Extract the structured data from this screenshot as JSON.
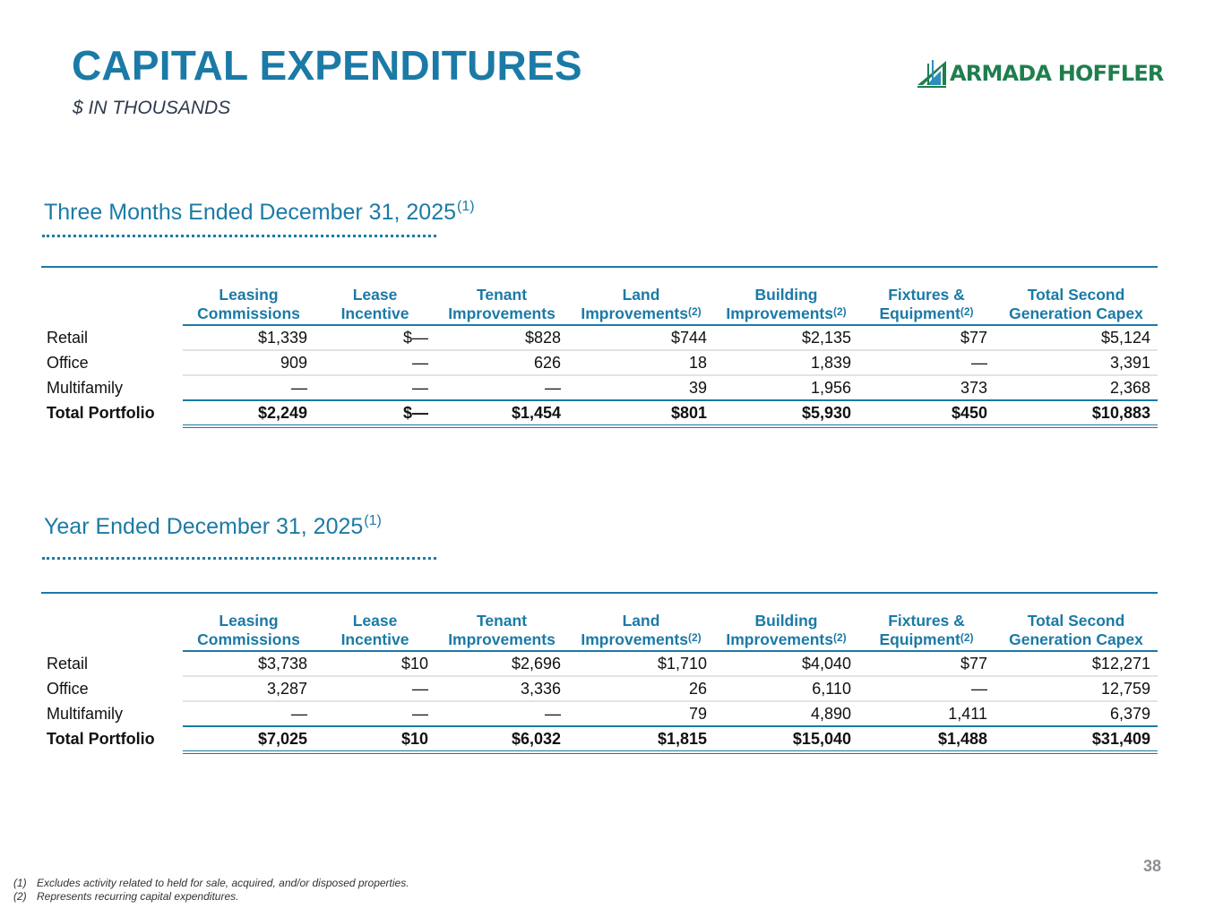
{
  "header": {
    "title": "CAPITAL EXPENDITURES",
    "subtitle": "$ IN THOUSANDS",
    "logo_text": "ARMADA HOFFLER",
    "brand_color": "#1b7aa6",
    "logo_color": "#1f7e4e"
  },
  "columns": [
    {
      "line1": "Leasing",
      "line2": "Commissions",
      "note": ""
    },
    {
      "line1": "Lease",
      "line2": "Incentive",
      "note": ""
    },
    {
      "line1": "Tenant",
      "line2": "Improvements",
      "note": ""
    },
    {
      "line1": "Land",
      "line2": "Improvements",
      "note": "(2)"
    },
    {
      "line1": "Building",
      "line2": "Improvements",
      "note": "(2)"
    },
    {
      "line1": "Fixtures &",
      "line2": "Equipment",
      "note": "(2)"
    },
    {
      "line1": "Total Second",
      "line2": "Generation Capex",
      "note": ""
    }
  ],
  "sections": [
    {
      "heading": "Three Months Ended December 31, 2025",
      "heading_note": "(1)",
      "rows": [
        {
          "label": "Retail",
          "values": [
            "$1,339",
            "$—",
            "$828",
            "$744",
            "$2,135",
            "$77",
            "$5,124"
          ]
        },
        {
          "label": "Office",
          "values": [
            "909",
            "—",
            "626",
            "18",
            "1,839",
            "—",
            "3,391"
          ]
        },
        {
          "label": "Multifamily",
          "values": [
            "—",
            "—",
            "—",
            "39",
            "1,956",
            "373",
            "2,368"
          ]
        }
      ],
      "total": {
        "label": "Total Portfolio",
        "values": [
          "$2,249",
          "$—",
          "$1,454",
          "$801",
          "$5,930",
          "$450",
          "$10,883"
        ]
      }
    },
    {
      "heading": "Year Ended December 31, 2025",
      "heading_note": "(1)",
      "rows": [
        {
          "label": "Retail",
          "values": [
            "$3,738",
            "$10",
            "$2,696",
            "$1,710",
            "$4,040",
            "$77",
            "$12,271"
          ]
        },
        {
          "label": "Office",
          "values": [
            "3,287",
            "—",
            "3,336",
            "26",
            "6,110",
            "—",
            "12,759"
          ]
        },
        {
          "label": "Multifamily",
          "values": [
            "—",
            "—",
            "—",
            "79",
            "4,890",
            "1,411",
            "6,379"
          ]
        }
      ],
      "total": {
        "label": "Total Portfolio",
        "values": [
          "$7,025",
          "$10",
          "$6,032",
          "$1,815",
          "$15,040",
          "$1,488",
          "$31,409"
        ]
      }
    }
  ],
  "footnotes": [
    {
      "num": "(1)",
      "text": "Excludes activity related to held for sale, acquired, and/or disposed properties."
    },
    {
      "num": "(2)",
      "text": "Represents recurring capital expenditures."
    }
  ],
  "page_number": "38"
}
